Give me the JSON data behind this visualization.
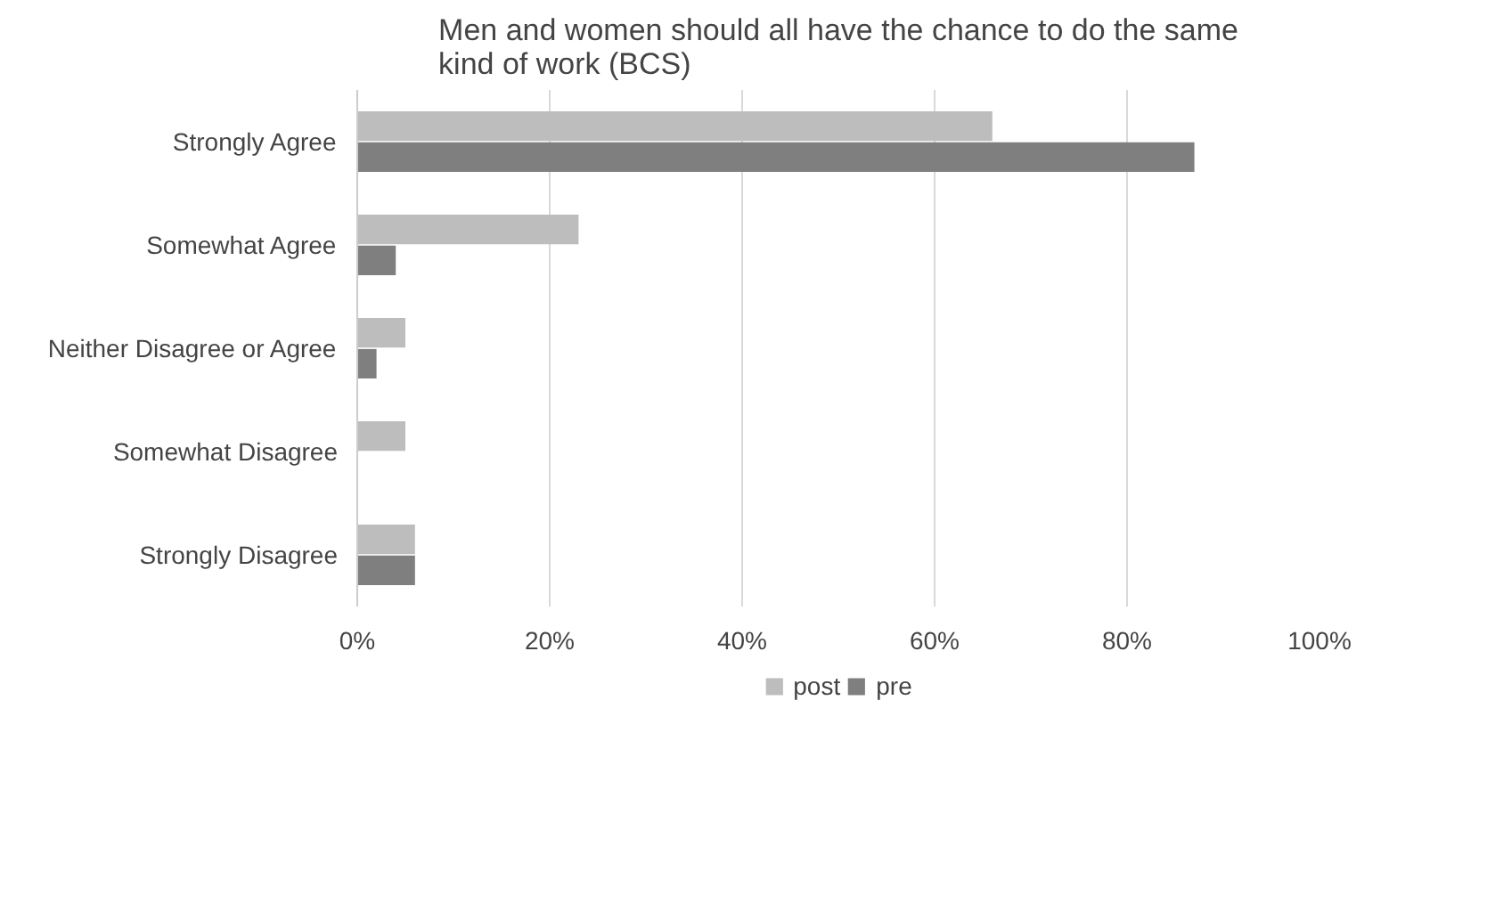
{
  "chart_data": {
    "type": "bar",
    "orientation": "horizontal",
    "title": "Men and women should all have the chance to do the same kind of work (BCS)",
    "categories": [
      "Strongly Agree",
      "Somewhat Agree",
      "Neither Disagree or Agree",
      "Somewhat Disagree",
      "Strongly Disagree"
    ],
    "series": [
      {
        "name": "post",
        "color": "#bdbdbd",
        "values": [
          66,
          23,
          5,
          5,
          6
        ]
      },
      {
        "name": "pre",
        "color": "#7f7f7f",
        "values": [
          87,
          4,
          2,
          0,
          6
        ]
      }
    ],
    "xlim": [
      0,
      100
    ],
    "xticks": [
      {
        "value": 0,
        "label": "0%"
      },
      {
        "value": 20,
        "label": "20%"
      },
      {
        "value": 40,
        "label": "40%"
      },
      {
        "value": 60,
        "label": "60%"
      },
      {
        "value": 80,
        "label": "80%"
      },
      {
        "value": 100,
        "label": "100%"
      }
    ],
    "grid": "x",
    "legend": "bottom"
  }
}
